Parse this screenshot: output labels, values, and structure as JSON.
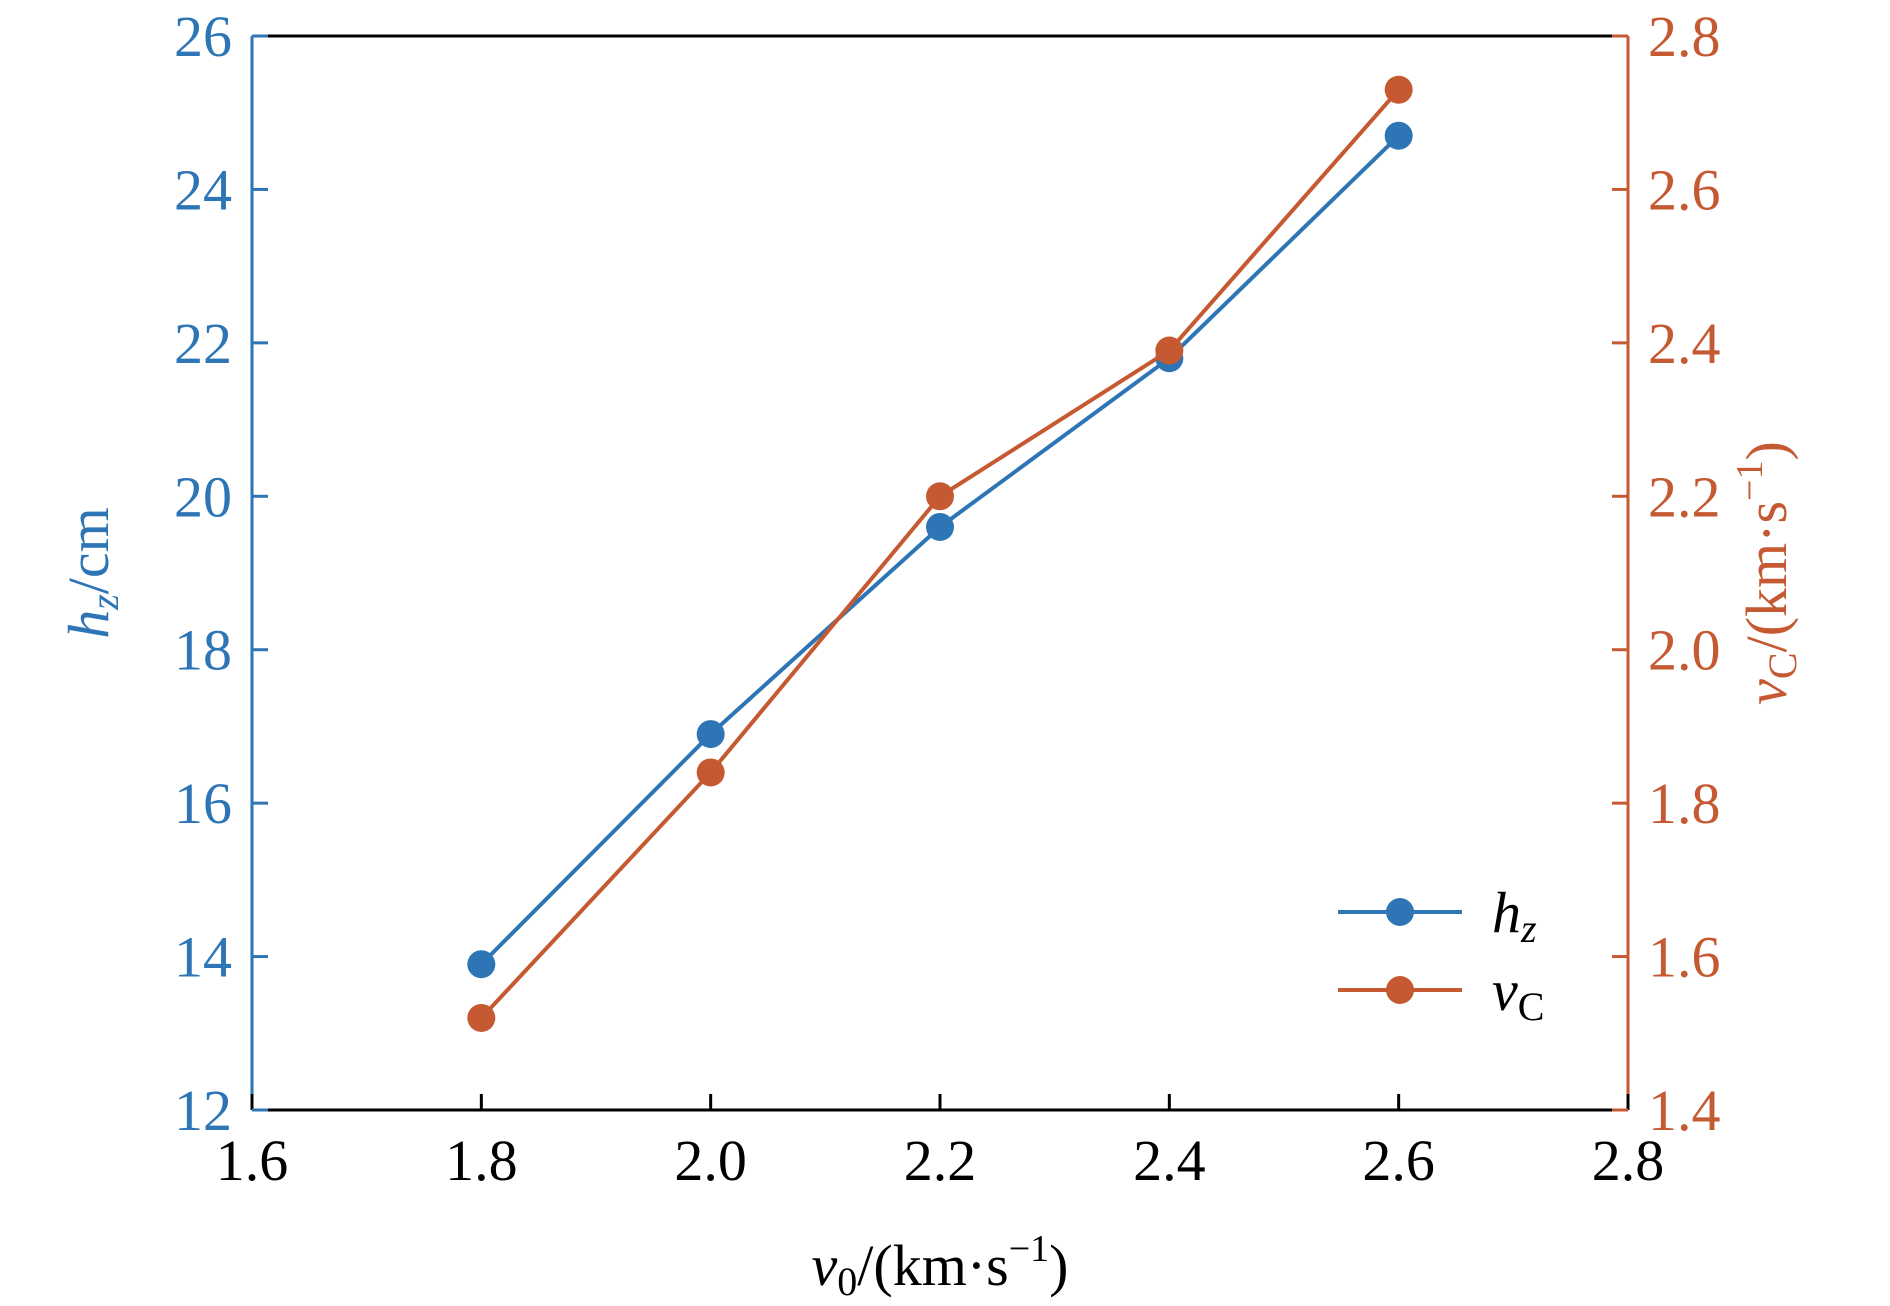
{
  "colors": {
    "left": "#2e75b6",
    "right": "#c55a32",
    "frame": "#000000"
  },
  "chart_data": {
    "type": "line",
    "x": [
      1.8,
      2.0,
      2.2,
      2.4,
      2.6
    ],
    "xlim": [
      1.6,
      2.8
    ],
    "xticks": [
      "1.6",
      "1.8",
      "2.0",
      "2.2",
      "2.4",
      "2.6",
      "2.8"
    ],
    "xlabel": {
      "main": "v",
      "sub": "0",
      "unit": "/(km·s",
      "sup": "−1",
      "close": ")"
    },
    "y_left": {
      "label_main": "h",
      "label_sub": "z",
      "label_unit": "/cm",
      "lim": [
        12,
        26
      ],
      "ticks": [
        "12",
        "14",
        "16",
        "18",
        "20",
        "22",
        "24",
        "26"
      ]
    },
    "y_right": {
      "label_main": "v",
      "label_sub": "C",
      "label_unit": "/(km·s",
      "label_sup": "−1",
      "label_close": ")",
      "lim": [
        1.4,
        2.8
      ],
      "ticks": [
        "1.4",
        "1.6",
        "1.8",
        "2.0",
        "2.2",
        "2.4",
        "2.6",
        "2.8"
      ]
    },
    "series": [
      {
        "name": "h",
        "name_sub": "z",
        "axis": "left",
        "values": [
          13.9,
          16.9,
          19.6,
          21.8,
          24.7
        ]
      },
      {
        "name": "v",
        "name_sub": "C",
        "axis": "right",
        "values": [
          1.52,
          1.84,
          2.2,
          2.39,
          2.73
        ]
      }
    ],
    "legend": "bottom-right",
    "grid": false
  }
}
